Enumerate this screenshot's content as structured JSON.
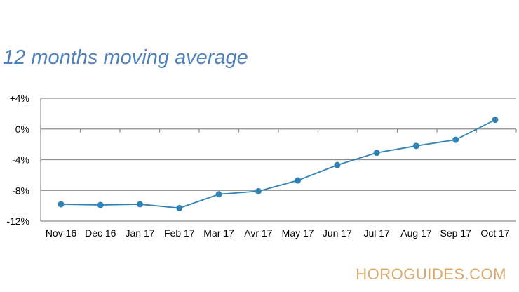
{
  "chart_data": {
    "type": "line",
    "title": "12 months moving average",
    "xlabel": "",
    "ylabel": "",
    "categories": [
      "Nov 16",
      "Dec 16",
      "Jan 17",
      "Feb 17",
      "Mar 17",
      "Avr 17",
      "May 17",
      "Jun 17",
      "Jul 17",
      "Aug 17",
      "Sep 17",
      "Oct 17"
    ],
    "series": [
      {
        "values": [
          -9.8,
          -9.9,
          -9.8,
          -10.3,
          -8.5,
          -8.1,
          -6.7,
          -4.7,
          -3.1,
          -2.2,
          -1.4,
          1.2
        ],
        "color": "#3182b5"
      }
    ],
    "ylim": [
      -12,
      4
    ],
    "yticks": [
      4,
      0,
      -4,
      -8,
      -12
    ],
    "ytick_labels": [
      "+4%",
      "0%",
      "-4%",
      "-8%",
      "-12%"
    ],
    "grid": "horizontal",
    "legend": "none"
  },
  "watermark": "HOROGUIDES.COM"
}
